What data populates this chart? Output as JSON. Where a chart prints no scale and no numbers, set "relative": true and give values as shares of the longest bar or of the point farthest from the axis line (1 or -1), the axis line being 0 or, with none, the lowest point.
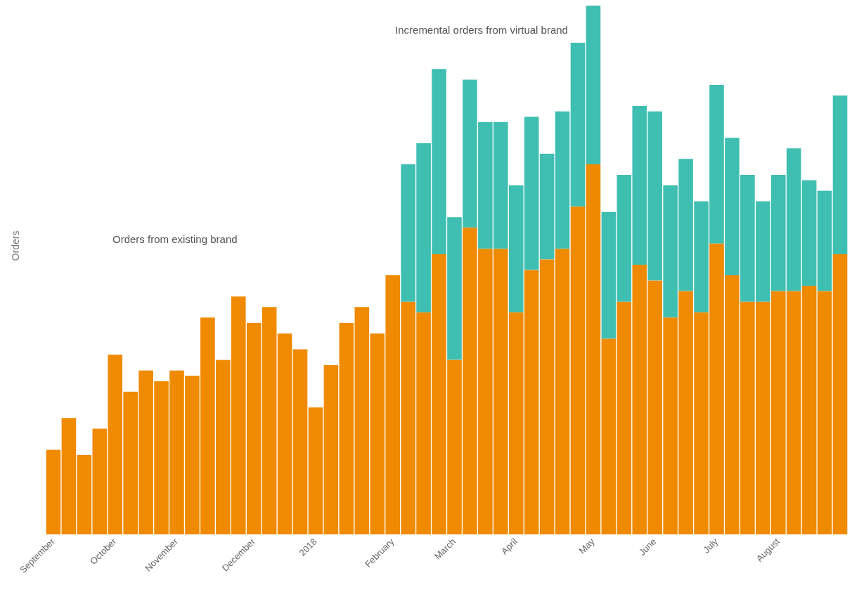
{
  "chart_data": {
    "type": "bar",
    "stacked": true,
    "relative": true,
    "ylabel": "Orders",
    "legend": false,
    "grid": false,
    "annotations": [
      "Orders from existing brand",
      "Incremental orders from virtual brand"
    ],
    "categories": [
      "September",
      null,
      null,
      null,
      "October",
      null,
      null,
      null,
      "November",
      null,
      null,
      null,
      null,
      "December",
      null,
      null,
      null,
      "2018",
      null,
      null,
      null,
      null,
      "February",
      null,
      null,
      null,
      "March",
      null,
      null,
      null,
      "April",
      null,
      null,
      null,
      null,
      "May",
      null,
      null,
      null,
      "June",
      null,
      null,
      null,
      "July",
      null,
      null,
      null,
      "August",
      null,
      null,
      null,
      null
    ],
    "series": [
      {
        "color": "#f08a00",
        "values": [
          0.16,
          0.22,
          0.15,
          0.2,
          0.34,
          0.27,
          0.31,
          0.29,
          0.31,
          0.3,
          0.41,
          0.33,
          0.45,
          0.4,
          0.43,
          0.38,
          0.35,
          0.24,
          0.32,
          0.4,
          0.43,
          0.38,
          0.49,
          0.44,
          0.42,
          0.53,
          0.33,
          0.58,
          0.54,
          0.54,
          0.42,
          0.5,
          0.52,
          0.54,
          0.62,
          0.7,
          0.37,
          0.44,
          0.51,
          0.48,
          0.41,
          0.46,
          0.42,
          0.55,
          0.49,
          0.44,
          0.44,
          0.46,
          0.46,
          0.47,
          0.46,
          0.53
        ]
      },
      {
        "color": "#3fbfb2",
        "values": [
          null,
          null,
          null,
          null,
          null,
          null,
          null,
          null,
          null,
          null,
          null,
          null,
          null,
          null,
          null,
          null,
          null,
          null,
          null,
          null,
          null,
          null,
          null,
          0.26,
          0.32,
          0.35,
          0.27,
          0.28,
          0.24,
          0.24,
          0.24,
          0.29,
          0.2,
          0.26,
          0.31,
          0.3,
          0.24,
          0.24,
          0.3,
          0.32,
          0.25,
          0.25,
          0.21,
          0.3,
          0.26,
          0.24,
          0.19,
          0.22,
          0.27,
          0.2,
          0.19,
          0.3
        ]
      }
    ]
  }
}
